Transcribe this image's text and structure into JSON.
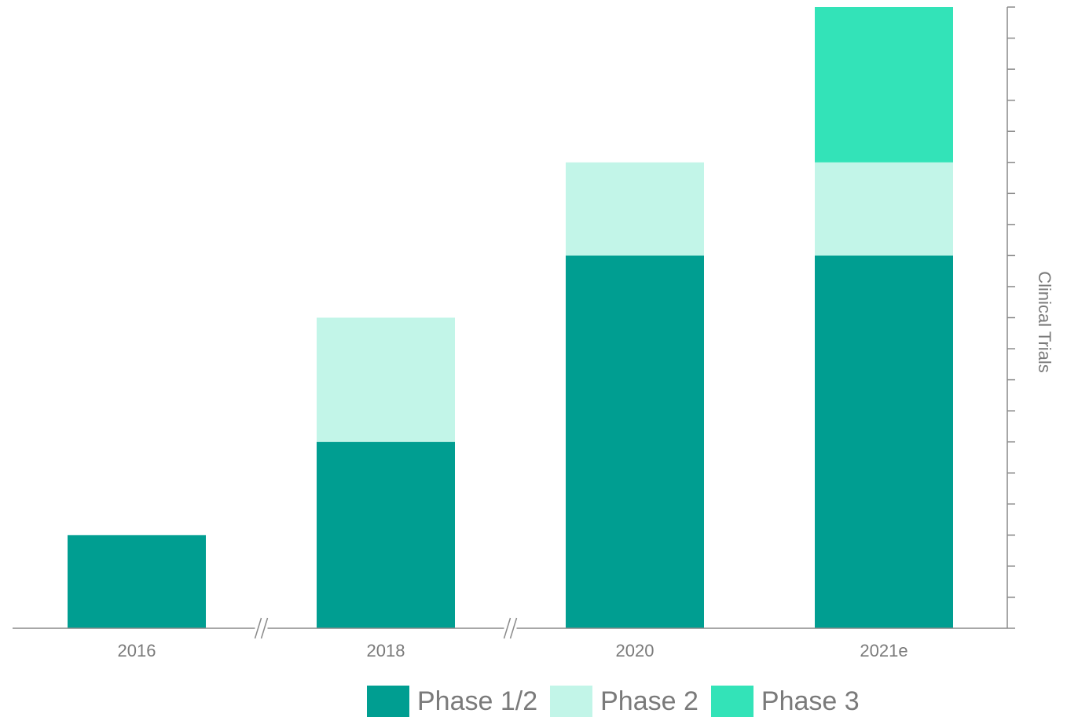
{
  "chart_data": {
    "type": "bar",
    "stacked": true,
    "categories": [
      "2016",
      "2018",
      "2020",
      "2021e"
    ],
    "series": [
      {
        "name": "Phase 1/2",
        "color": "#009e91",
        "values": [
          3,
          6,
          12,
          12
        ]
      },
      {
        "name": "Phase 2",
        "color": "#c2f5e8",
        "values": [
          0,
          4,
          3,
          3
        ]
      },
      {
        "name": "Phase 3",
        "color": "#33e3b8",
        "values": [
          0,
          0,
          0,
          5
        ]
      }
    ],
    "ylabel": "Clinical Trials",
    "ylim": [
      0,
      20
    ],
    "y_ticks_labeled": false,
    "y_axis_position": "right",
    "axis_breaks_after": [
      "2016",
      "2018"
    ],
    "grid": false,
    "legend_position": "bottom"
  }
}
